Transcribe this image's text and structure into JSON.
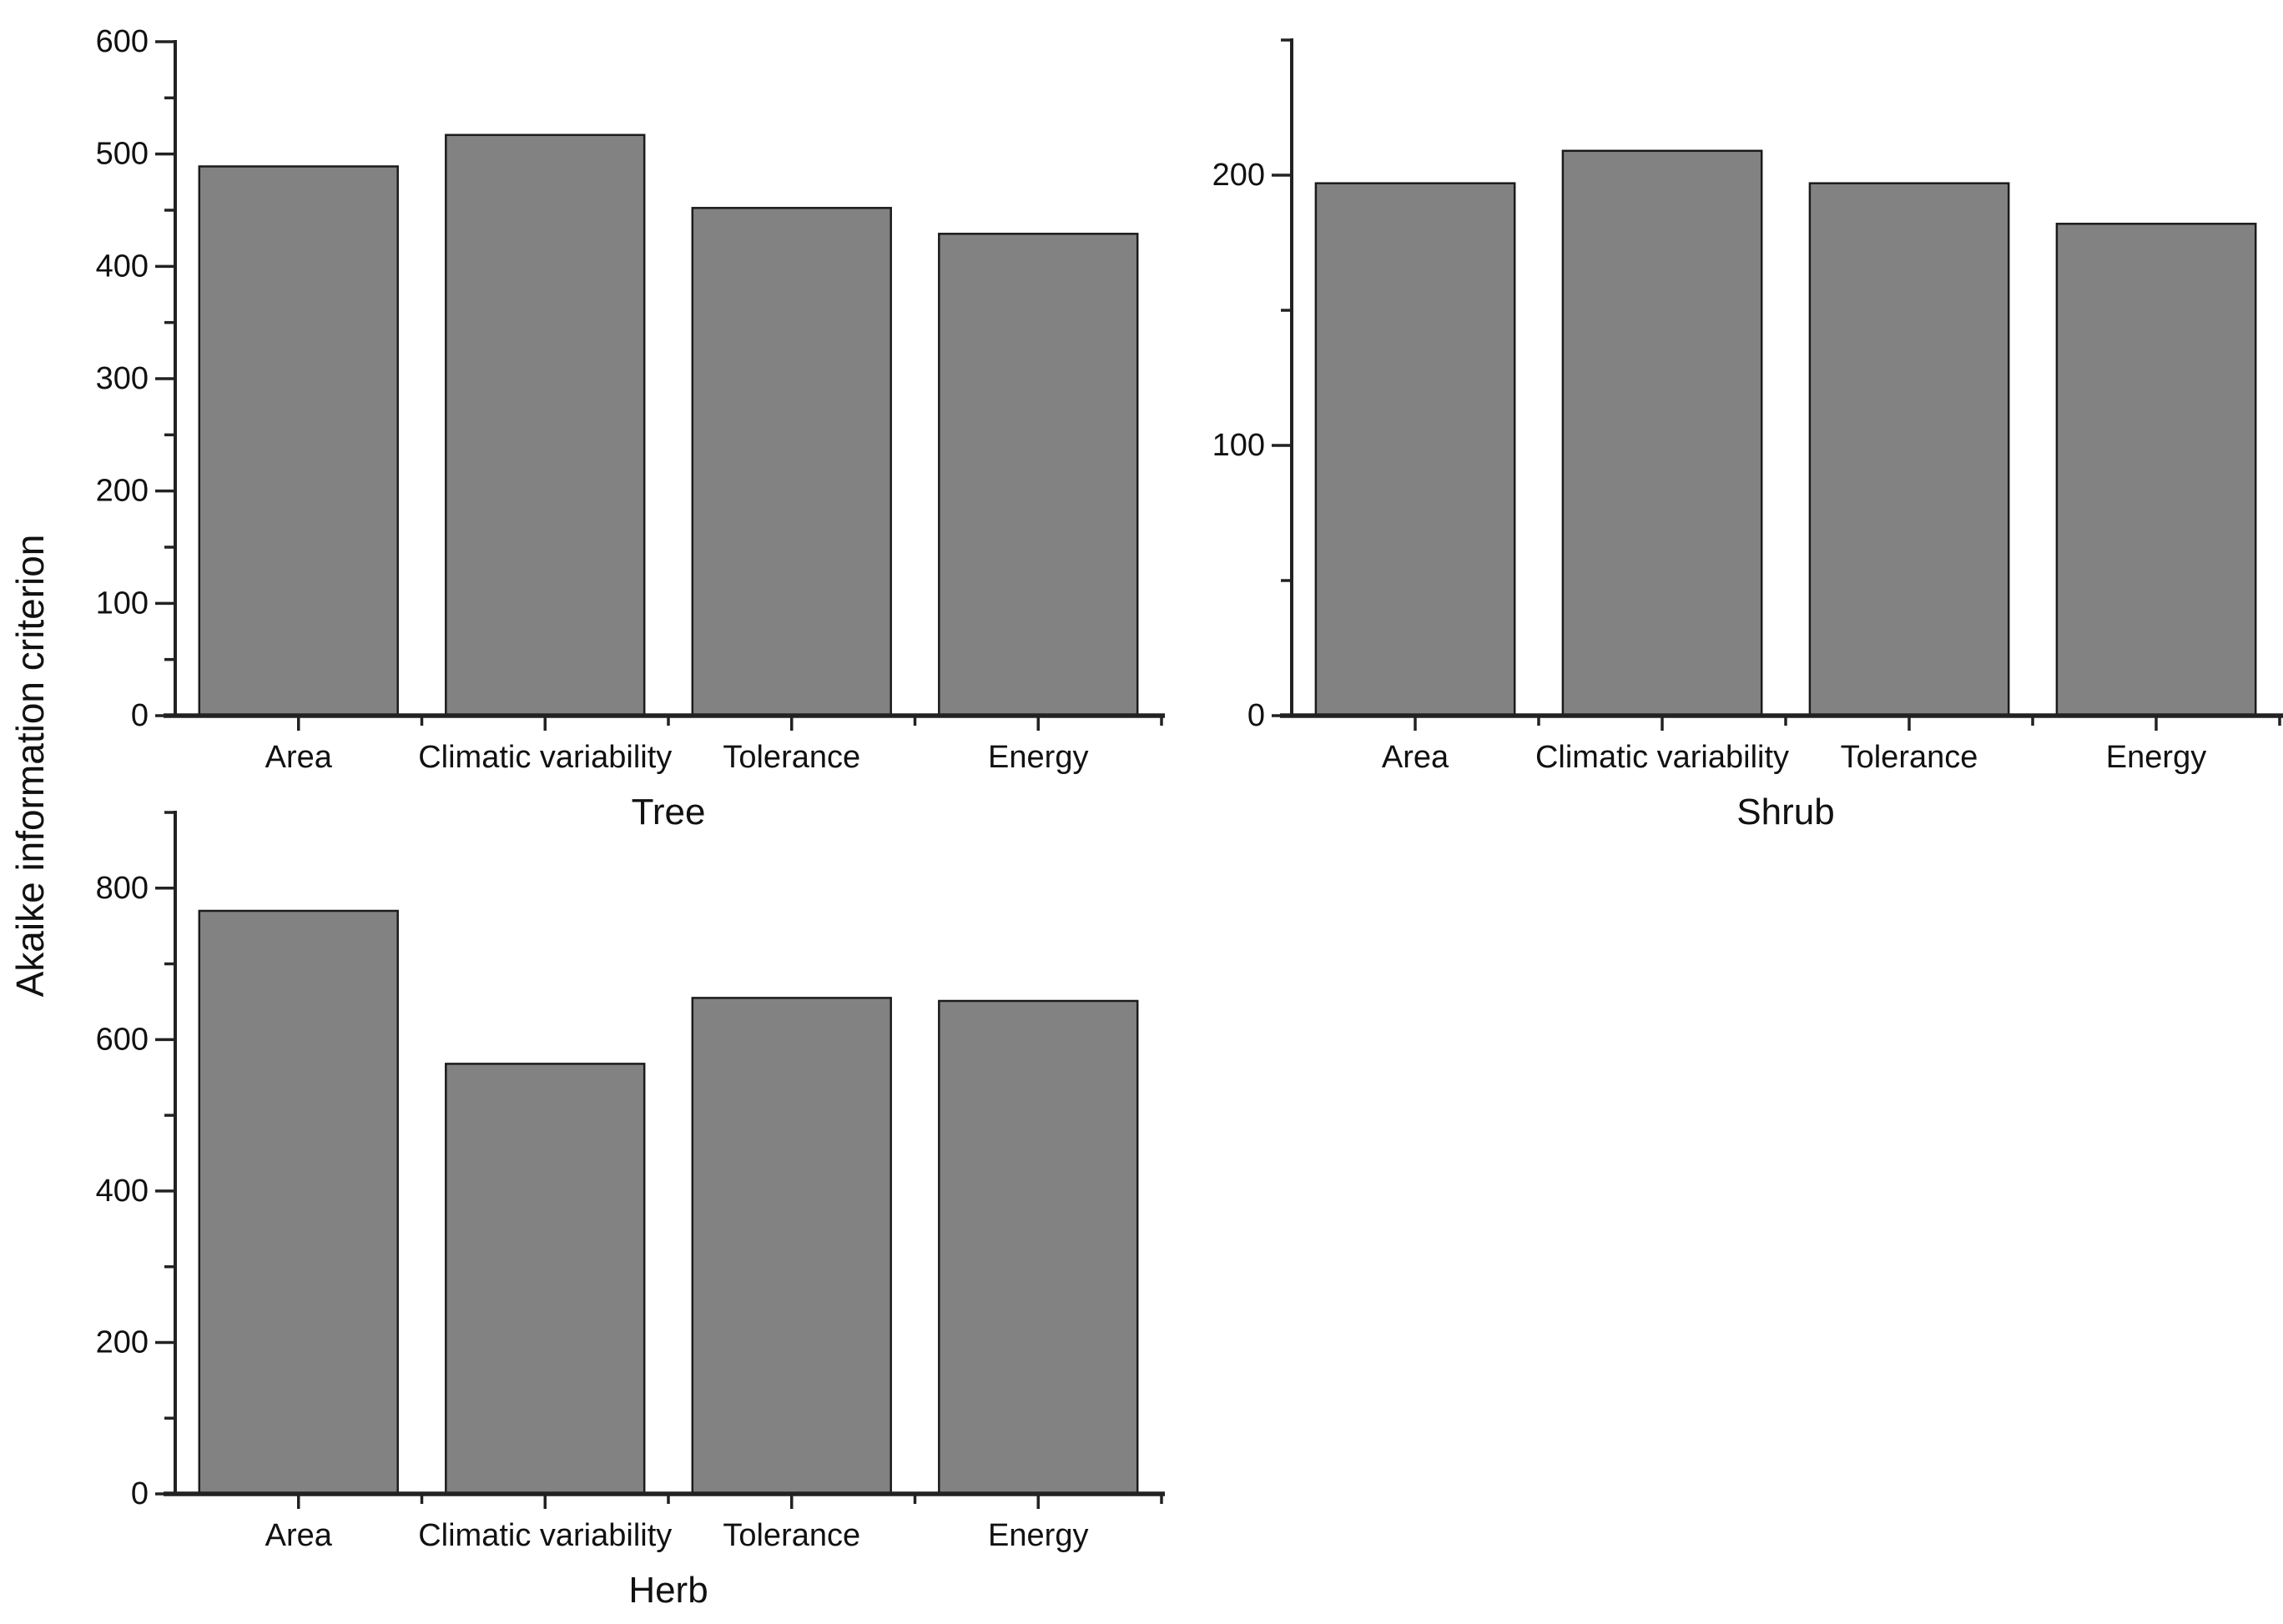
{
  "figure": {
    "ylabel": "Akaike information criterion",
    "background": "#ffffff",
    "bar_fill": "#828282",
    "bar_stroke": "#1b1b1b",
    "axis_color": "#222222",
    "text_color": "#111111"
  },
  "chart_data": [
    {
      "type": "bar",
      "title": "Tree",
      "categories": [
        "Area",
        "Climatic variability",
        "Tolerance",
        "Energy"
      ],
      "values": [
        489,
        517,
        452,
        429
      ],
      "xlabel": "Tree",
      "ylabel": "Akaike information criterion",
      "ylim": [
        0,
        600
      ],
      "yticks_major": [
        0,
        100,
        200,
        300,
        400,
        500,
        600
      ],
      "yticks_minor": [
        50,
        150,
        250,
        350,
        450,
        550
      ],
      "grid": "off",
      "legend": "none"
    },
    {
      "type": "bar",
      "title": "Shrub",
      "categories": [
        "Area",
        "Climatic variability",
        "Tolerance",
        "Energy"
      ],
      "values": [
        197,
        209,
        197,
        182
      ],
      "xlabel": "Shrub",
      "ylabel": "Akaike information criterion",
      "ylim": [
        0,
        250
      ],
      "yticks_major": [
        0,
        100,
        200
      ],
      "yticks_minor": [
        50,
        150,
        250
      ],
      "grid": "off",
      "legend": "none"
    },
    {
      "type": "bar",
      "title": "Herb",
      "categories": [
        "Area",
        "Climatic variability",
        "Tolerance",
        "Energy"
      ],
      "values": [
        770,
        568,
        655,
        651
      ],
      "xlabel": "Herb",
      "ylabel": "Akaike information criterion",
      "ylim": [
        0,
        900
      ],
      "yticks_major": [
        0,
        200,
        400,
        600,
        800
      ],
      "yticks_minor": [
        100,
        300,
        500,
        700,
        900
      ],
      "grid": "off",
      "legend": "none"
    }
  ]
}
